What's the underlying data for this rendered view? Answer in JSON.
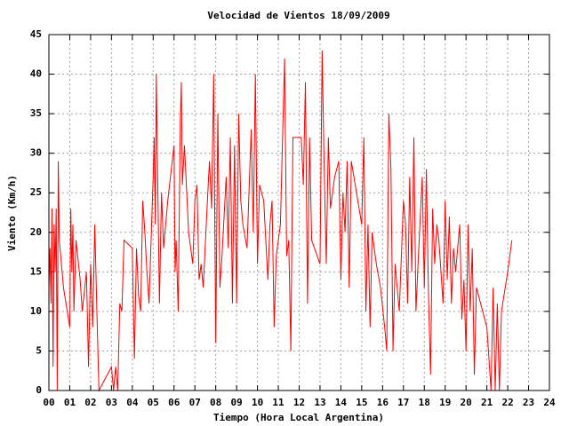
{
  "chart_data": {
    "type": "line",
    "title": "Velocidad de Vientos 18/09/2009",
    "xlabel": "Tiempo (Hora Local Argentina)",
    "ylabel": "Viento (Km/h)",
    "color": "#ff0000",
    "grid": true,
    "xlim": [
      0,
      24
    ],
    "ylim": [
      0,
      45
    ],
    "yticks": [
      0,
      5,
      10,
      15,
      20,
      25,
      30,
      35,
      40,
      45
    ],
    "xticks": [
      {
        "value": 0,
        "label": "00"
      },
      {
        "value": 1,
        "label": "01"
      },
      {
        "value": 2,
        "label": "02"
      },
      {
        "value": 3,
        "label": "03"
      },
      {
        "value": 4,
        "label": "04"
      },
      {
        "value": 5,
        "label": "05"
      },
      {
        "value": 6,
        "label": "06"
      },
      {
        "value": 7,
        "label": "07"
      },
      {
        "value": 8,
        "label": "08"
      },
      {
        "value": 9,
        "label": "09"
      },
      {
        "value": 10,
        "label": "10"
      },
      {
        "value": 11,
        "label": "11"
      },
      {
        "value": 12,
        "label": "12"
      },
      {
        "value": 13,
        "label": "13"
      },
      {
        "value": 14,
        "label": "14"
      },
      {
        "value": 15,
        "label": "15"
      },
      {
        "value": 16,
        "label": "16"
      },
      {
        "value": 17,
        "label": "17"
      },
      {
        "value": 18,
        "label": "18"
      },
      {
        "value": 19,
        "label": "19"
      },
      {
        "value": 20,
        "label": "20"
      },
      {
        "value": 21,
        "label": "21"
      },
      {
        "value": 22,
        "label": "22"
      },
      {
        "value": 23,
        "label": "23"
      },
      {
        "value": 24,
        "label": "24"
      }
    ],
    "x": [
      0.0,
      0.05,
      0.1,
      0.15,
      0.2,
      0.25,
      0.3,
      0.35,
      0.4,
      0.45,
      0.5,
      0.7,
      1.0,
      1.05,
      1.1,
      1.15,
      1.2,
      1.3,
      1.5,
      1.6,
      1.8,
      1.9,
      2.0,
      2.1,
      2.2,
      2.3,
      2.4,
      2.6,
      3.0,
      3.1,
      3.2,
      3.3,
      3.4,
      3.5,
      3.6,
      4.0,
      4.1,
      4.2,
      4.3,
      4.4,
      4.5,
      4.6,
      4.7,
      4.8,
      5.0,
      5.05,
      5.1,
      5.15,
      5.2,
      5.3,
      5.4,
      5.5,
      5.7,
      6.0,
      6.05,
      6.1,
      6.2,
      6.3,
      6.35,
      6.4,
      6.5,
      6.7,
      6.9,
      7.0,
      7.1,
      7.2,
      7.3,
      7.4,
      7.6,
      7.7,
      7.8,
      7.9,
      8.0,
      8.1,
      8.2,
      8.3,
      8.5,
      8.6,
      8.7,
      8.8,
      8.9,
      9.0,
      9.1,
      9.2,
      9.3,
      9.5,
      9.7,
      9.8,
      9.9,
      10.0,
      10.1,
      10.3,
      10.5,
      10.6,
      10.7,
      10.8,
      10.9,
      11.1,
      11.3,
      11.4,
      11.5,
      11.6,
      11.7,
      12.1,
      12.2,
      12.3,
      12.4,
      12.5,
      12.6,
      13.0,
      13.05,
      13.1,
      13.2,
      13.3,
      13.4,
      13.5,
      13.7,
      13.9,
      14.0,
      14.1,
      14.2,
      14.3,
      14.4,
      14.5,
      15.0,
      15.1,
      15.2,
      15.3,
      15.4,
      15.5,
      15.7,
      15.9,
      16.1,
      16.2,
      16.3,
      16.4,
      16.5,
      16.6,
      16.8,
      17.0,
      17.1,
      17.2,
      17.3,
      17.4,
      17.5,
      17.6,
      17.7,
      17.9,
      18.0,
      18.1,
      18.2,
      18.3,
      18.4,
      18.5,
      18.6,
      18.7,
      18.9,
      19.0,
      19.1,
      19.2,
      19.3,
      19.4,
      19.5,
      19.7,
      19.8,
      19.9,
      20.0,
      20.1,
      20.2,
      20.3,
      20.4,
      20.5,
      21.0,
      21.2,
      21.3,
      21.4,
      21.5,
      21.6,
      21.7,
      22.0,
      22.2
    ],
    "values": [
      13,
      18,
      11,
      23,
      3,
      21,
      15,
      23,
      0,
      29,
      19,
      13,
      8,
      23,
      15,
      21,
      10,
      19,
      14,
      10,
      15,
      3,
      16,
      8,
      21,
      10,
      0,
      1,
      3,
      0,
      3,
      0,
      11,
      10,
      19,
      18,
      4,
      18,
      12,
      10,
      24,
      20,
      15,
      11,
      27,
      32,
      21,
      40,
      30,
      11,
      25,
      18,
      24,
      31,
      15,
      19,
      10,
      34,
      39,
      26,
      31,
      20,
      16,
      24,
      26,
      14,
      16,
      13,
      24,
      29,
      23,
      40,
      6,
      35,
      13,
      17,
      27,
      18,
      32,
      11,
      31,
      11,
      35,
      24,
      21,
      18,
      33,
      20,
      40,
      16,
      26,
      24,
      14,
      21,
      24,
      8,
      17,
      21,
      42,
      17,
      19,
      5,
      32,
      32,
      26,
      39,
      11,
      32,
      19,
      16,
      29,
      43,
      28,
      16,
      32,
      23,
      27,
      29,
      14,
      25,
      20,
      29,
      13,
      29,
      21,
      32,
      10,
      21,
      8,
      20,
      16,
      13,
      8,
      5,
      35,
      28,
      5,
      16,
      10,
      24,
      21,
      11,
      27,
      15,
      32,
      10,
      16,
      27,
      13,
      28,
      12,
      2,
      23,
      16,
      21,
      19,
      11,
      24,
      14,
      22,
      11,
      18,
      15,
      21,
      9,
      14,
      5,
      21,
      10,
      18,
      2,
      13,
      8,
      0,
      13,
      0,
      11,
      0,
      10,
      15,
      19
    ]
  }
}
